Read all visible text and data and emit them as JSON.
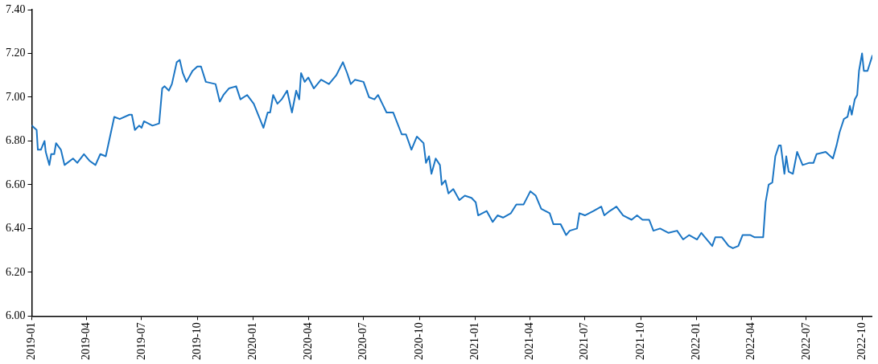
{
  "chart_data": {
    "type": "line",
    "x": [
      "2019-01-01",
      "2019-01-09",
      "2019-01-11",
      "2019-01-16",
      "2019-01-22",
      "2019-01-24",
      "2019-01-30",
      "2019-02-02",
      "2019-02-07",
      "2019-02-10",
      "2019-02-18",
      "2019-02-24",
      "2019-03-10",
      "2019-03-17",
      "2019-03-28",
      "2019-04-06",
      "2019-04-16",
      "2019-04-24",
      "2019-05-03",
      "2019-05-10",
      "2019-05-17",
      "2019-05-26",
      "2019-06-11",
      "2019-06-15",
      "2019-06-20",
      "2019-06-27",
      "2019-07-01",
      "2019-07-05",
      "2019-07-19",
      "2019-07-30",
      "2019-08-04",
      "2019-08-08",
      "2019-08-15",
      "2019-08-20",
      "2019-08-28",
      "2019-09-02",
      "2019-09-07",
      "2019-09-13",
      "2019-09-23",
      "2019-10-01",
      "2019-10-07",
      "2019-10-15",
      "2019-10-31",
      "2019-11-07",
      "2019-11-13",
      "2019-11-22",
      "2019-12-04",
      "2019-12-11",
      "2019-12-22",
      "2020-01-02",
      "2020-01-18",
      "2020-01-25",
      "2020-01-29",
      "2020-02-03",
      "2020-02-10",
      "2020-02-17",
      "2020-02-26",
      "2020-03-05",
      "2020-03-12",
      "2020-03-17",
      "2020-03-20",
      "2020-03-26",
      "2020-04-01",
      "2020-04-10",
      "2020-04-22",
      "2020-05-05",
      "2020-05-17",
      "2020-05-28",
      "2020-06-04",
      "2020-06-10",
      "2020-06-17",
      "2020-07-01",
      "2020-07-10",
      "2020-07-19",
      "2020-07-25",
      "2020-08-01",
      "2020-08-08",
      "2020-08-19",
      "2020-09-02",
      "2020-09-09",
      "2020-09-18",
      "2020-09-27",
      "2020-10-08",
      "2020-10-12",
      "2020-10-17",
      "2020-10-21",
      "2020-10-28",
      "2020-11-04",
      "2020-11-07",
      "2020-11-13",
      "2020-11-18",
      "2020-11-26",
      "2020-12-06",
      "2020-12-15",
      "2020-12-26",
      "2021-01-02",
      "2021-01-06",
      "2021-01-20",
      "2021-01-30",
      "2021-02-07",
      "2021-02-16",
      "2021-03-01",
      "2021-03-10",
      "2021-03-22",
      "2021-04-02",
      "2021-04-11",
      "2021-04-20",
      "2021-05-04",
      "2021-05-10",
      "2021-05-22",
      "2021-05-31",
      "2021-06-06",
      "2021-06-18",
      "2021-06-22",
      "2021-07-01",
      "2021-07-15",
      "2021-07-28",
      "2021-08-02",
      "2021-08-11",
      "2021-08-22",
      "2021-09-02",
      "2021-09-16",
      "2021-09-25",
      "2021-10-04",
      "2021-10-15",
      "2021-10-22",
      "2021-11-02",
      "2021-11-16",
      "2021-11-30",
      "2021-12-10",
      "2021-12-20",
      "2022-01-02",
      "2022-01-09",
      "2022-01-27",
      "2022-02-01",
      "2022-02-12",
      "2022-02-23",
      "2022-03-02",
      "2022-03-11",
      "2022-03-18",
      "2022-03-31",
      "2022-04-07",
      "2022-04-21",
      "2022-04-25",
      "2022-04-30",
      "2022-05-06",
      "2022-05-11",
      "2022-05-17",
      "2022-05-20",
      "2022-05-26",
      "2022-05-29",
      "2022-06-02",
      "2022-06-09",
      "2022-06-16",
      "2022-06-25",
      "2022-07-06",
      "2022-07-13",
      "2022-07-18",
      "2022-08-02",
      "2022-08-14",
      "2022-08-20",
      "2022-08-25",
      "2022-09-01",
      "2022-09-07",
      "2022-09-11",
      "2022-09-14",
      "2022-09-19",
      "2022-09-23",
      "2022-09-26",
      "2022-10-01",
      "2022-10-04",
      "2022-10-10",
      "2022-10-18"
    ],
    "series": [
      {
        "color": "#1a75c4",
        "values": [
          6.87,
          6.85,
          6.76,
          6.76,
          6.8,
          6.75,
          6.69,
          6.74,
          6.74,
          6.79,
          6.76,
          6.69,
          6.72,
          6.7,
          6.74,
          6.71,
          6.69,
          6.74,
          6.73,
          6.82,
          6.91,
          6.9,
          6.92,
          6.92,
          6.85,
          6.87,
          6.86,
          6.89,
          6.87,
          6.88,
          7.04,
          7.05,
          7.03,
          7.06,
          7.16,
          7.17,
          7.11,
          7.07,
          7.12,
          7.14,
          7.14,
          7.07,
          7.06,
          6.98,
          7.01,
          7.04,
          7.05,
          6.99,
          7.01,
          6.97,
          6.86,
          6.93,
          6.93,
          7.01,
          6.97,
          6.99,
          7.03,
          6.93,
          7.03,
          6.99,
          7.11,
          7.07,
          7.09,
          7.04,
          7.08,
          7.06,
          7.1,
          7.16,
          7.11,
          7.06,
          7.08,
          7.07,
          7.0,
          6.99,
          7.01,
          6.97,
          6.93,
          6.93,
          6.83,
          6.83,
          6.76,
          6.82,
          6.79,
          6.7,
          6.73,
          6.65,
          6.72,
          6.69,
          6.6,
          6.62,
          6.56,
          6.58,
          6.53,
          6.55,
          6.54,
          6.52,
          6.46,
          6.48,
          6.43,
          6.46,
          6.45,
          6.47,
          6.51,
          6.51,
          6.57,
          6.55,
          6.49,
          6.47,
          6.42,
          6.42,
          6.37,
          6.39,
          6.4,
          6.47,
          6.46,
          6.48,
          6.5,
          6.46,
          6.48,
          6.5,
          6.46,
          6.44,
          6.46,
          6.44,
          6.44,
          6.39,
          6.4,
          6.38,
          6.39,
          6.35,
          6.37,
          6.35,
          6.38,
          6.32,
          6.36,
          6.36,
          6.32,
          6.31,
          6.32,
          6.37,
          6.37,
          6.36,
          6.36,
          6.52,
          6.6,
          6.61,
          6.73,
          6.78,
          6.78,
          6.65,
          6.73,
          6.66,
          6.65,
          6.75,
          6.69,
          6.7,
          6.7,
          6.74,
          6.75,
          6.72,
          6.78,
          6.84,
          6.9,
          6.91,
          6.96,
          6.92,
          6.99,
          7.01,
          7.12,
          7.2,
          7.12,
          7.12,
          7.19
        ]
      }
    ],
    "xlim": [
      "2019-01-01",
      "2022-10-18"
    ],
    "xticks": [
      "2019-01",
      "2019-04",
      "2019-07",
      "2019-10",
      "2020-01",
      "2020-04",
      "2020-07",
      "2020-10",
      "2021-01",
      "2021-04",
      "2021-07",
      "2021-10",
      "2022-01",
      "2022-04",
      "2022-07",
      "2022-10"
    ],
    "ylim": [
      6.0,
      7.4
    ],
    "yticks": [
      {
        "value": 6.0,
        "label": "6.00"
      },
      {
        "value": 6.2,
        "label": "6.20"
      },
      {
        "value": 6.4,
        "label": "6.40"
      },
      {
        "value": 6.6,
        "label": "6.60"
      },
      {
        "value": 6.8,
        "label": "6.80"
      },
      {
        "value": 7.0,
        "label": "7.00"
      },
      {
        "value": 7.2,
        "label": "7.20"
      },
      {
        "value": 7.4,
        "label": "7.40"
      }
    ]
  }
}
